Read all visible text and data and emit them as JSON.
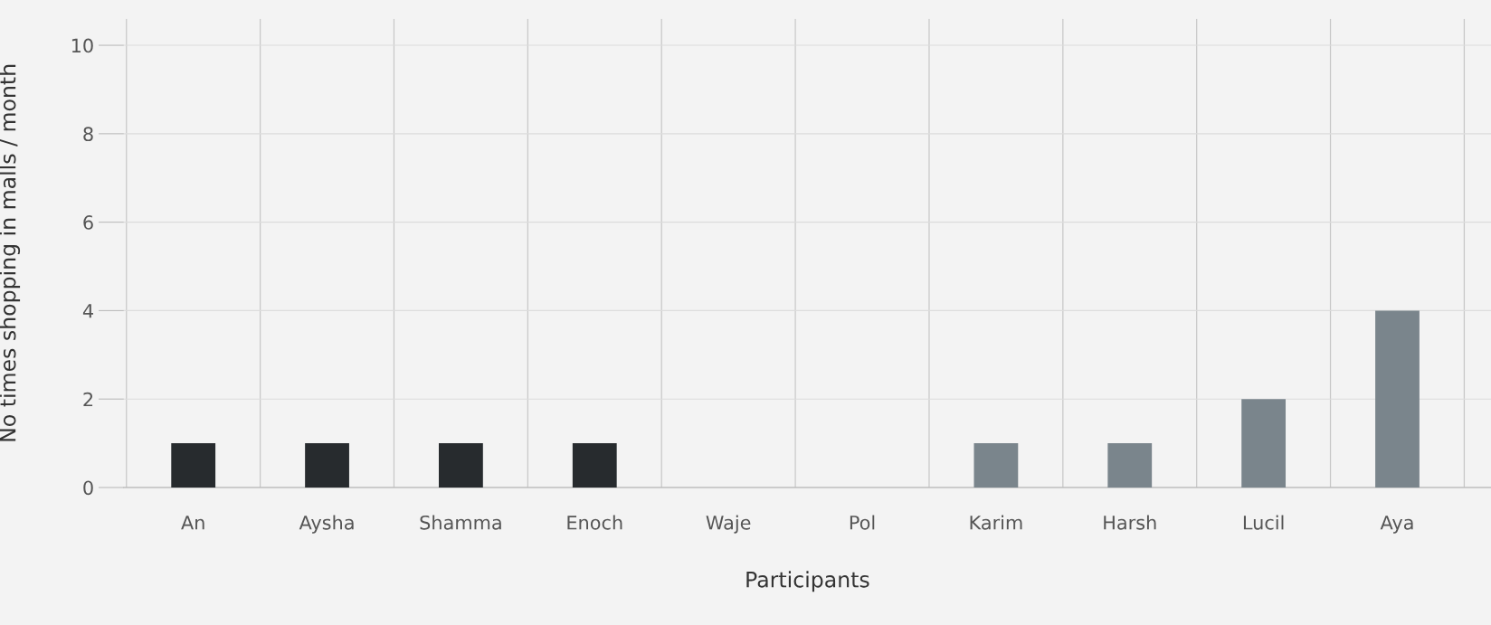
{
  "chart_data": {
    "type": "bar",
    "xlabel": "Participants",
    "ylabel": "No times shopping in malls / month",
    "categories": [
      "An",
      "Aysha",
      "Shamma",
      "Enoch",
      "Waje",
      "Pol",
      "Karim",
      "Harsh",
      "Lucil",
      "Aya"
    ],
    "values": [
      1,
      1,
      1,
      1,
      0,
      0,
      1,
      1,
      2,
      4
    ],
    "colors": [
      "#272b2e",
      "#272b2e",
      "#272b2e",
      "#272b2e",
      "#272b2e",
      "#272b2e",
      "#7a858c",
      "#7a858c",
      "#7a858c",
      "#7a858c"
    ],
    "ylim": [
      0,
      10.6
    ],
    "yticks": [
      0,
      2,
      4,
      6,
      8,
      10
    ],
    "grid": true
  }
}
